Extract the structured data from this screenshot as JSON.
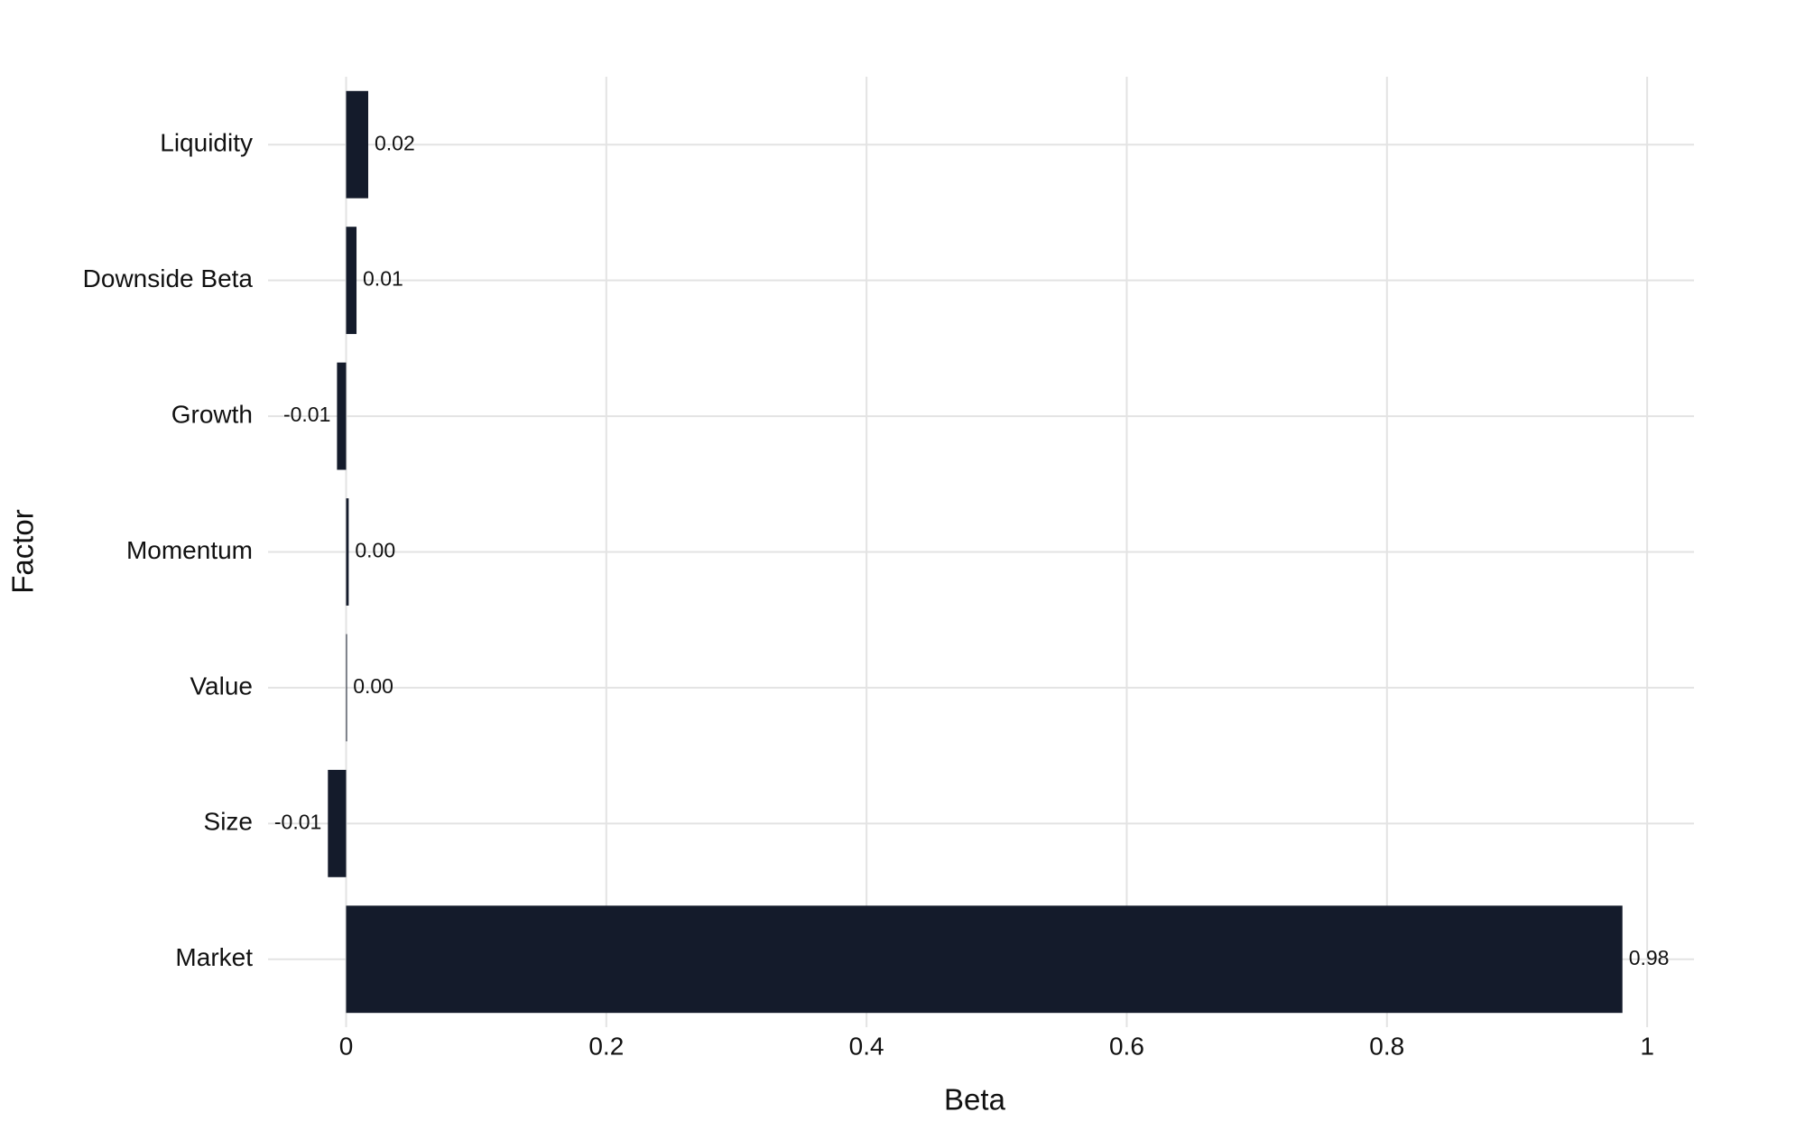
{
  "chart_data": {
    "type": "hbar",
    "x_label": "Beta",
    "y_label": "Factor",
    "categories": [
      "Liquidity",
      "Downside Beta",
      "Growth",
      "Momentum",
      "Value",
      "Size",
      "Market"
    ],
    "values": [
      0.017,
      0.008,
      -0.007,
      0.002,
      0.0005,
      -0.014,
      0.981
    ],
    "value_labels": [
      "0.02",
      "0.01",
      "-0.01",
      "0.00",
      "0.00",
      "-0.01",
      "0.98"
    ],
    "color": "#141b2b",
    "xlim": [
      -0.06,
      1.036
    ],
    "xticks": [
      0,
      0.2,
      0.4,
      0.6,
      0.8,
      1
    ],
    "grid": true
  }
}
